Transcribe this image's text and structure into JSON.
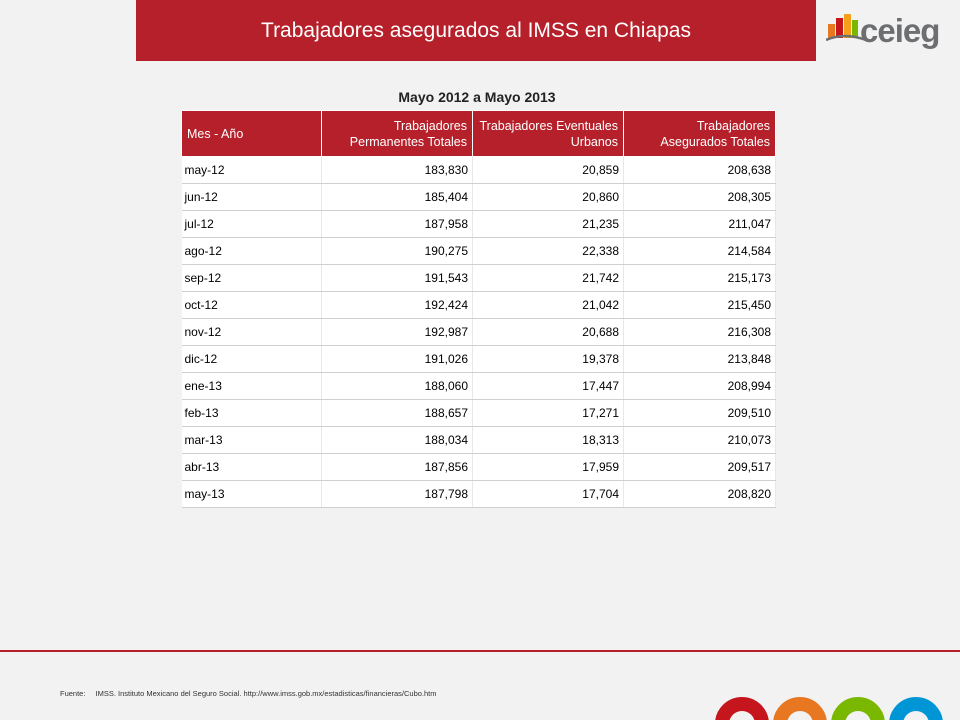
{
  "header": {
    "title": "Trabajadores asegurados al IMSS en Chiapas"
  },
  "logo": {
    "text": "ceieg",
    "icon": "ceieg-logo-icon"
  },
  "subtitle": "Mayo 2012 a Mayo 2013",
  "table": {
    "headers": [
      "Mes - Año",
      "Trabajadores Permanentes Totales",
      "Trabajadores Eventuales Urbanos",
      "Trabajadores Asegurados Totales"
    ],
    "rows": [
      [
        "may-12",
        "183,830",
        "20,859",
        "208,638"
      ],
      [
        "jun-12",
        "185,404",
        "20,860",
        "208,305"
      ],
      [
        "jul-12",
        "187,958",
        "21,235",
        "211,047"
      ],
      [
        "ago-12",
        "190,275",
        "22,338",
        "214,584"
      ],
      [
        "sep-12",
        "191,543",
        "21,742",
        "215,173"
      ],
      [
        "oct-12",
        "192,424",
        "21,042",
        "215,450"
      ],
      [
        "nov-12",
        "192,987",
        "20,688",
        "216,308"
      ],
      [
        "dic-12",
        "191,026",
        "19,378",
        "213,848"
      ],
      [
        "ene-13",
        "188,060",
        "17,447",
        "208,994"
      ],
      [
        "feb-13",
        "188,657",
        "17,271",
        "209,510"
      ],
      [
        "mar-13",
        "188,034",
        "18,313",
        "210,073"
      ],
      [
        "abr-13",
        "187,856",
        "17,959",
        "209,517"
      ],
      [
        "may-13",
        "187,798",
        "17,704",
        "208,820"
      ]
    ]
  },
  "footer": {
    "source_label": "Fuente:",
    "source_text": "IMSS. Instituto Mexicano del Seguro Social. http://www.imss.gob.mx/estadisticas/financieras/Cubo.htm"
  },
  "colors": {
    "accent": "#b5202a",
    "ring_colors": [
      "#c4161c",
      "#e87722",
      "#7ab800",
      "#0096d6"
    ]
  }
}
